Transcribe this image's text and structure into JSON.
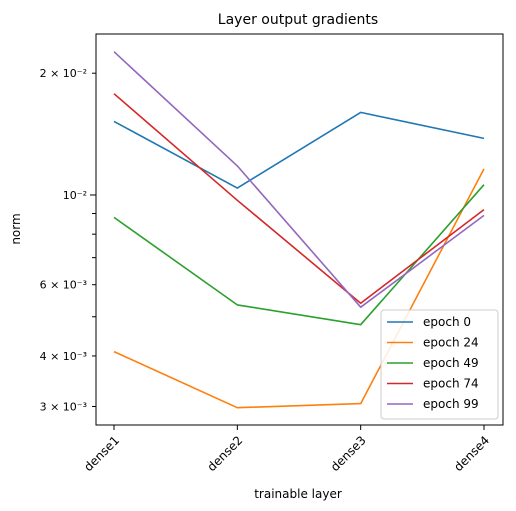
{
  "chart_data": {
    "type": "line",
    "title": "Layer output gradients",
    "xlabel": "trainable layer",
    "ylabel": "norm",
    "categories": [
      "dense1",
      "dense2",
      "dense3",
      "dense4"
    ],
    "yscale": "log",
    "ylim": [
      0.0027,
      0.025
    ],
    "y_major_ticks": [
      {
        "value": 0.02,
        "label": "2 × 10⁻²"
      }
    ],
    "y_ticks_labeled": [
      {
        "value": 0.003,
        "label": "3 × 10⁻³"
      },
      {
        "value": 0.004,
        "label": "4 × 10⁻³"
      },
      {
        "value": 0.006,
        "label": "6 × 10⁻³"
      },
      {
        "value": 0.01,
        "label": "10⁻²"
      },
      {
        "value": 0.02,
        "label": "2 × 10⁻²"
      }
    ],
    "y_minor_unlabeled": [
      0.005,
      0.007,
      0.008,
      0.009
    ],
    "grid": false,
    "legend_position": "lower-right",
    "x_tick_rotation": 45,
    "series": [
      {
        "name": "epoch 0",
        "color": "#1f77b4",
        "values": [
          0.0152,
          0.0104,
          0.016,
          0.0138
        ]
      },
      {
        "name": "epoch 24",
        "color": "#ff7f0e",
        "values": [
          0.0041,
          0.00298,
          0.00305,
          0.0116
        ]
      },
      {
        "name": "epoch 49",
        "color": "#2ca02c",
        "values": [
          0.0088,
          0.00535,
          0.00478,
          0.0106
        ]
      },
      {
        "name": "epoch 74",
        "color": "#d62728",
        "values": [
          0.0178,
          0.0097,
          0.0054,
          0.0092
        ]
      },
      {
        "name": "epoch 99",
        "color": "#9467bd",
        "values": [
          0.0226,
          0.0118,
          0.00528,
          0.0089
        ]
      }
    ]
  }
}
